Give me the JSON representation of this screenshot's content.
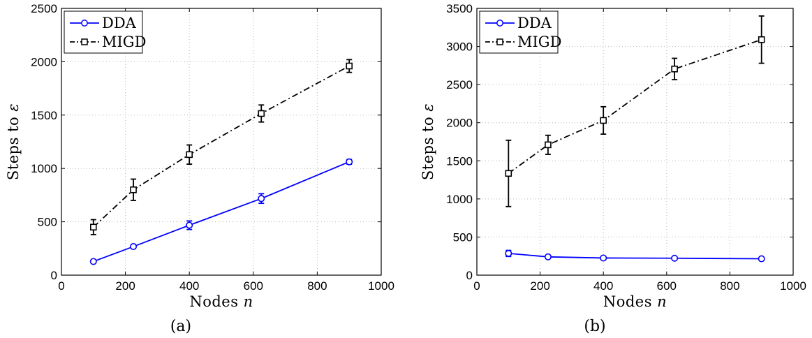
{
  "chart_data": [
    {
      "type": "line",
      "caption": "(a)",
      "xlabel": "Nodes",
      "xlabel_var": "n",
      "ylabel": "Steps to",
      "ylabel_var": "ε",
      "xlim": [
        0,
        1000
      ],
      "ylim": [
        0,
        2500
      ],
      "xticks": [
        0,
        200,
        400,
        600,
        800,
        1000
      ],
      "yticks": [
        0,
        500,
        1000,
        1500,
        2000,
        2500
      ],
      "grid": true,
      "legend_position": "top-left",
      "x": [
        100,
        225,
        400,
        625,
        900
      ],
      "series": [
        {
          "name": "DDA",
          "color": "#0000ff",
          "marker": "circle",
          "linestyle": "solid",
          "values": [
            128,
            268,
            468,
            718,
            1062
          ],
          "errors": [
            12,
            18,
            40,
            45,
            22
          ]
        },
        {
          "name": "MIGD",
          "color": "#000000",
          "marker": "square",
          "linestyle": "dashdot",
          "values": [
            450,
            800,
            1130,
            1515,
            1960
          ],
          "errors": [
            70,
            100,
            90,
            80,
            60
          ]
        }
      ]
    },
    {
      "type": "line",
      "caption": "(b)",
      "xlabel": "Nodes",
      "xlabel_var": "n",
      "ylabel": "Steps to",
      "ylabel_var": "ε",
      "xlim": [
        0,
        1000
      ],
      "ylim": [
        0,
        3500
      ],
      "xticks": [
        0,
        200,
        400,
        600,
        800,
        1000
      ],
      "yticks": [
        0,
        500,
        1000,
        1500,
        2000,
        2500,
        3000,
        3500
      ],
      "grid": true,
      "legend_position": "top-left",
      "x": [
        100,
        225,
        400,
        625,
        900
      ],
      "series": [
        {
          "name": "DDA",
          "color": "#0000ff",
          "marker": "circle",
          "linestyle": "solid",
          "values": [
            285,
            240,
            225,
            222,
            215
          ],
          "errors": [
            40,
            20,
            15,
            15,
            12
          ]
        },
        {
          "name": "MIGD",
          "color": "#000000",
          "marker": "square",
          "linestyle": "dashdot",
          "values": [
            1335,
            1710,
            2030,
            2705,
            3090
          ],
          "errors": [
            435,
            125,
            180,
            140,
            310
          ]
        }
      ]
    }
  ]
}
